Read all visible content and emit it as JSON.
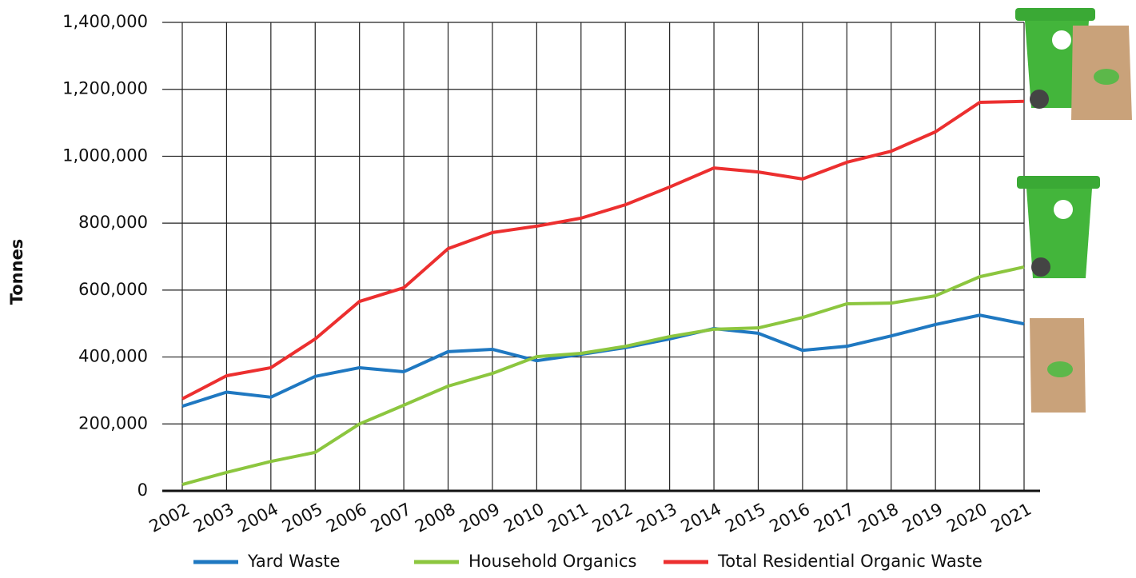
{
  "chart_data": {
    "type": "line",
    "y_label": "Tonnes",
    "categories": [
      "2002",
      "2003",
      "2004",
      "2005",
      "2006",
      "2007",
      "2008",
      "2009",
      "2010",
      "2011",
      "2012",
      "2013",
      "2014",
      "2015",
      "2016",
      "2017",
      "2018",
      "2019",
      "2020",
      "2021"
    ],
    "series": [
      {
        "name": "Yard Waste",
        "color": "#1f78c1",
        "values": [
          253000,
          295000,
          280000,
          342000,
          368000,
          356000,
          416000,
          423000,
          389000,
          408000,
          428000,
          454000,
          485000,
          471000,
          420000,
          432000,
          463000,
          497000,
          525000,
          499000
        ]
      },
      {
        "name": "Household Organics",
        "color": "#8cc63f",
        "values": [
          19000,
          55000,
          88000,
          115000,
          200000,
          256000,
          313000,
          351000,
          401000,
          411000,
          432000,
          461000,
          483000,
          487000,
          518000,
          559000,
          561000,
          583000,
          640000,
          669000
        ]
      },
      {
        "name": "Total Residential Organic Waste",
        "color": "#ec2f2f",
        "values": [
          275000,
          344000,
          368000,
          454000,
          566000,
          607000,
          724000,
          772000,
          791000,
          815000,
          855000,
          908000,
          965000,
          953000,
          932000,
          982000,
          1015000,
          1073000,
          1161000,
          1164000
        ]
      }
    ],
    "ylim": [
      0,
      1400000
    ],
    "yticks": [
      0,
      {
        "value": 200000,
        "label": "200,000"
      },
      {
        "value": 400000,
        "label": "400,000"
      },
      {
        "value": 600000,
        "label": "600,000"
      },
      {
        "value": 800000,
        "label": "800,000"
      },
      {
        "value": 1000000,
        "label": "1,000,000"
      },
      {
        "value": 1200000,
        "label": "1,200,000"
      },
      {
        "value": 1400000,
        "label": "1,400,000"
      }
    ],
    "grid": true,
    "legend": "bottom"
  }
}
